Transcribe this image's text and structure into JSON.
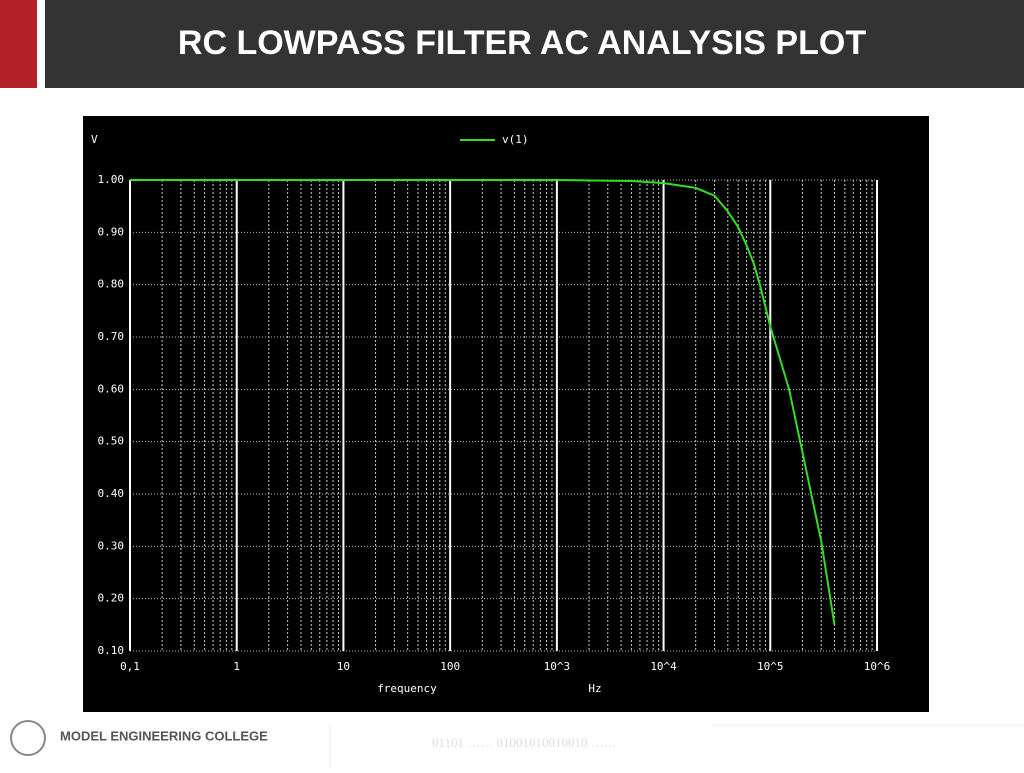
{
  "header": {
    "title": "RC LOWPASS FILTER AC ANALYSIS PLOT"
  },
  "footer": {
    "college": "MODEL ENGINEERING COLLEGE",
    "binary": "01101 …… 01001010010010 ……"
  },
  "chart_data": {
    "type": "line",
    "y_label": "V",
    "x_label": "frequency",
    "x_unit": "Hz",
    "xscale": "log",
    "grid": true,
    "xlim": [
      0.1,
      1000000
    ],
    "ylim": [
      0.1,
      1
    ],
    "xticks": [
      {
        "value": 0.1,
        "label": "0,1"
      },
      1,
      10,
      100,
      {
        "value": 1000,
        "label": "10^3"
      },
      {
        "value": 10000,
        "label": "10^4"
      },
      {
        "value": 100000,
        "label": "10^5"
      },
      {
        "value": 1000000,
        "label": "10^6"
      }
    ],
    "yticks": [
      {
        "value": 1,
        "label": "1.00"
      },
      {
        "value": 0.9,
        "label": "0.90"
      },
      {
        "value": 0.8,
        "label": "0.80"
      },
      {
        "value": 0.7,
        "label": "0.70"
      },
      {
        "value": 0.6,
        "label": "0.60"
      },
      {
        "value": 0.5,
        "label": "0.50"
      },
      {
        "value": 0.4,
        "label": "0.40"
      },
      {
        "value": 0.3,
        "label": "0.30"
      },
      {
        "value": 0.2,
        "label": "0.20"
      },
      {
        "value": 0.1,
        "label": "0.10"
      }
    ],
    "x": [
      0.1,
      1,
      10,
      100,
      1000,
      5000,
      10000,
      20000,
      30000,
      40000,
      50000,
      60000,
      70000,
      80000,
      100000,
      150000,
      200000,
      300000,
      400000
    ],
    "series": [
      {
        "name": "v(1)",
        "color": "#33dd22",
        "values": [
          1,
          1,
          1,
          1,
          1,
          0.998,
          0.994,
          0.985,
          0.97,
          0.94,
          0.91,
          0.875,
          0.84,
          0.8,
          0.72,
          0.6,
          0.48,
          0.31,
          0.15
        ]
      }
    ]
  }
}
